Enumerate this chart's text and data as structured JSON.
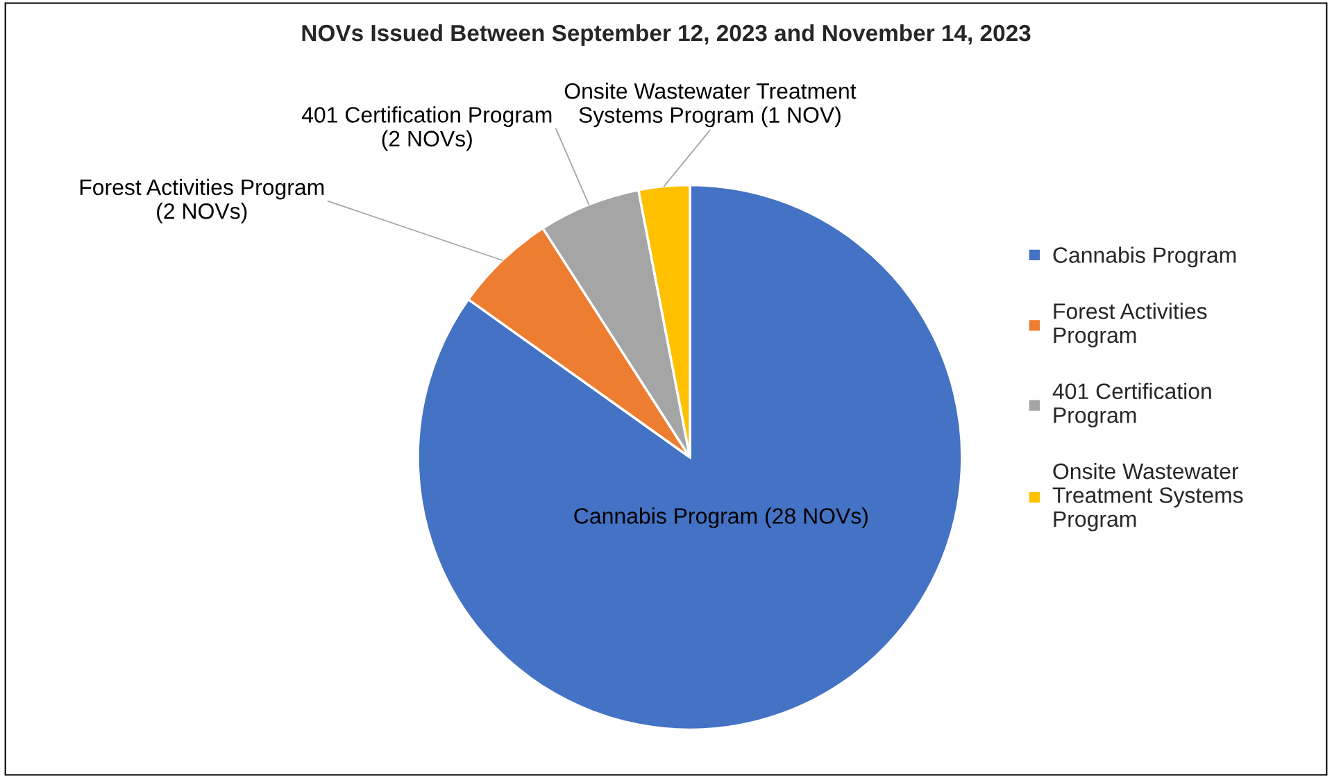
{
  "chart_data": {
    "type": "pie",
    "title": "NOVs Issued Between September 12, 2023 and November 14, 2023",
    "categories": [
      "Cannabis Program",
      "Forest Activities Program",
      "401 Certification Program",
      "Onsite Wastewater Treatment Systems Program"
    ],
    "values": [
      28,
      2,
      2,
      1
    ],
    "colors": [
      "#4472c4",
      "#ed7d31",
      "#a5a5a5",
      "#ffc000"
    ],
    "value_labels": [
      "Cannabis Program (28 NOVs)",
      "Forest Activities Program\n(2 NOVs)",
      "401 Certification Program\n(2 NOVs)",
      "Onsite Wastewater Treatment\nSystems Program (1 NOV)"
    ],
    "legend": "right"
  }
}
